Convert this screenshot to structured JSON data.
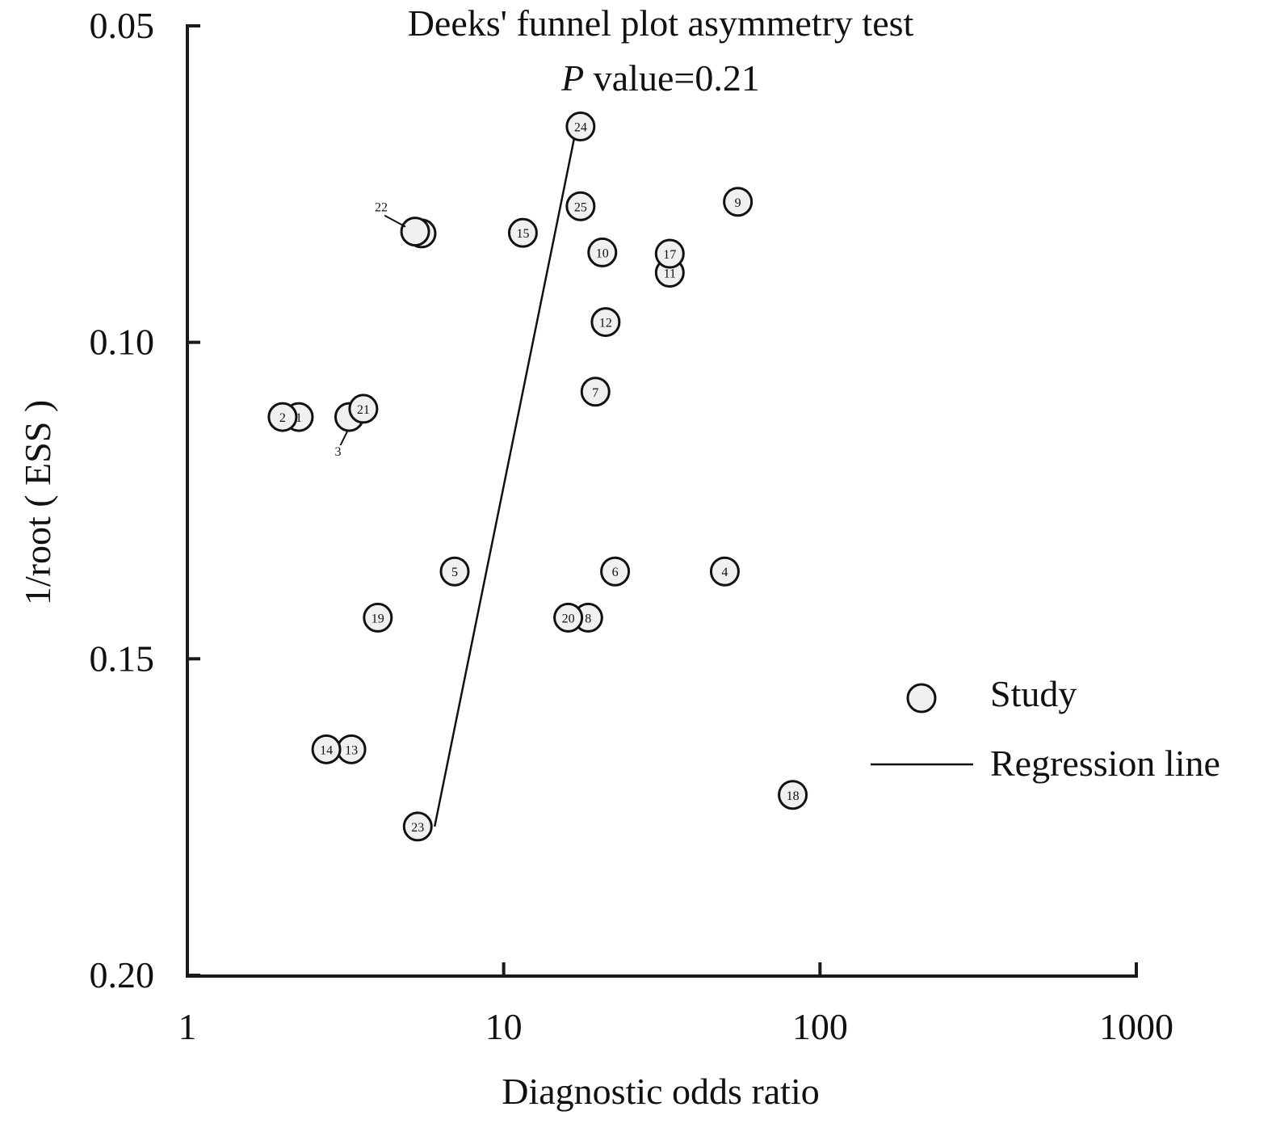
{
  "chart_data": {
    "type": "scatter",
    "title": "Deeks' funnel plot asymmetry test",
    "subtitle": {
      "p_symbol": "P",
      "text": " value=0.21"
    },
    "xlabel": "Diagnostic odds ratio",
    "ylabel": "1/root ( ESS )",
    "x_scale": "log",
    "xlim": [
      1,
      1000
    ],
    "x_ticks": [
      1,
      10,
      100,
      1000
    ],
    "x_tick_labels": [
      "1",
      "10",
      "100",
      "1000"
    ],
    "ylim": [
      0.05,
      0.2
    ],
    "y_inverted": true,
    "y_ticks": [
      0.05,
      0.1,
      0.15,
      0.2
    ],
    "y_tick_labels": [
      "0.05",
      "0.10",
      "0.15",
      "0.20"
    ],
    "grid": false,
    "legend_position": "right",
    "series": [
      {
        "name": "Study",
        "points": [
          {
            "id": "1",
            "x": 2.25,
            "y": 0.1118
          },
          {
            "id": "2",
            "x": 2.0,
            "y": 0.1118
          },
          {
            "id": "3",
            "x": 3.25,
            "y": 0.1118,
            "label_offset": "below-left"
          },
          {
            "id": "4",
            "x": 50,
            "y": 0.1362
          },
          {
            "id": "5",
            "x": 7.0,
            "y": 0.1362
          },
          {
            "id": "6",
            "x": 22.5,
            "y": 0.1362
          },
          {
            "id": "7",
            "x": 19.5,
            "y": 0.1078
          },
          {
            "id": "8",
            "x": 18.5,
            "y": 0.1435
          },
          {
            "id": "9",
            "x": 55,
            "y": 0.0778
          },
          {
            "id": "10",
            "x": 20.5,
            "y": 0.0858
          },
          {
            "id": "11",
            "x": 33.5,
            "y": 0.089
          },
          {
            "id": "12",
            "x": 21,
            "y": 0.0968
          },
          {
            "id": "13",
            "x": 3.3,
            "y": 0.1643
          },
          {
            "id": "14",
            "x": 2.75,
            "y": 0.1643
          },
          {
            "id": "15",
            "x": 11.5,
            "y": 0.0827
          },
          {
            "id": "16",
            "x": 5.5,
            "y": 0.0828
          },
          {
            "id": "17",
            "x": 33.5,
            "y": 0.086
          },
          {
            "id": "18",
            "x": 82,
            "y": 0.1715
          },
          {
            "id": "19",
            "x": 4.0,
            "y": 0.1435
          },
          {
            "id": "20",
            "x": 16,
            "y": 0.1435
          },
          {
            "id": "21",
            "x": 3.6,
            "y": 0.1105
          },
          {
            "id": "22",
            "x": 5.25,
            "y": 0.0825,
            "label_offset": "above-left"
          },
          {
            "id": "23",
            "x": 5.35,
            "y": 0.1765
          },
          {
            "id": "24",
            "x": 17.5,
            "y": 0.0659
          },
          {
            "id": "25",
            "x": 17.5,
            "y": 0.0785
          }
        ]
      },
      {
        "name": "Regression line",
        "line": [
          {
            "x": 6.05,
            "y": 0.1765
          },
          {
            "x": 17.0,
            "y": 0.0659
          }
        ]
      }
    ]
  }
}
